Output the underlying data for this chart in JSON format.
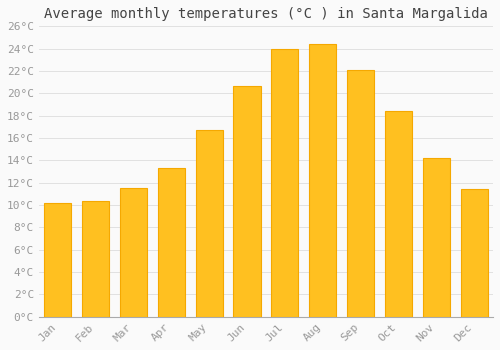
{
  "title": "Average monthly temperatures (°C ) in Santa Margalida",
  "months": [
    "Jan",
    "Feb",
    "Mar",
    "Apr",
    "May",
    "Jun",
    "Jul",
    "Aug",
    "Sep",
    "Oct",
    "Nov",
    "Dec"
  ],
  "temperatures": [
    10.2,
    10.4,
    11.5,
    13.3,
    16.7,
    20.7,
    24.0,
    24.4,
    22.1,
    18.4,
    14.2,
    11.4
  ],
  "bar_color": "#FFC020",
  "bar_edge_color": "#F5A800",
  "ylim": [
    0,
    26
  ],
  "yticks": [
    0,
    2,
    4,
    6,
    8,
    10,
    12,
    14,
    16,
    18,
    20,
    22,
    24,
    26
  ],
  "background_color": "#FAFAFA",
  "grid_color": "#DDDDDD",
  "title_fontsize": 10,
  "tick_fontsize": 8,
  "tick_color": "#999999",
  "font_family": "monospace"
}
